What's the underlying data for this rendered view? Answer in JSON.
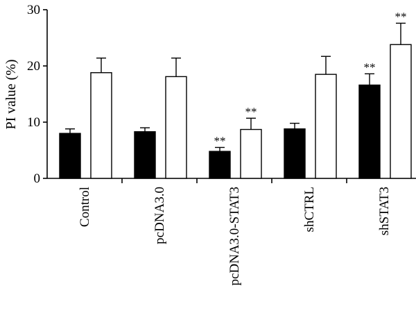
{
  "chart_data": {
    "type": "bar",
    "title": "",
    "xlabel": "",
    "ylabel": "PI value (%)",
    "ylim": [
      0,
      30
    ],
    "yticks": [
      0,
      10,
      20,
      30
    ],
    "categories": [
      "Control",
      "pcDNA3.0",
      "pcDNA3.0-STAT3",
      "shCTRL",
      "shSTAT3"
    ],
    "series": [
      {
        "fill": "#000000",
        "values": [
          8.0,
          8.3,
          4.8,
          8.8,
          16.6
        ],
        "errors": [
          0.8,
          0.7,
          0.7,
          1.0,
          2.0
        ],
        "annotations": [
          "",
          "",
          "**",
          "",
          "**"
        ]
      },
      {
        "fill": "#ffffff",
        "values": [
          18.8,
          18.1,
          8.7,
          18.5,
          23.8
        ],
        "errors": [
          2.6,
          3.3,
          2.0,
          3.2,
          3.8
        ],
        "annotations": [
          "",
          "",
          "**",
          "",
          "**"
        ]
      }
    ],
    "grid": false,
    "legend": "none",
    "colors": {
      "axis": "#000000",
      "bar_stroke": "#000000"
    }
  }
}
